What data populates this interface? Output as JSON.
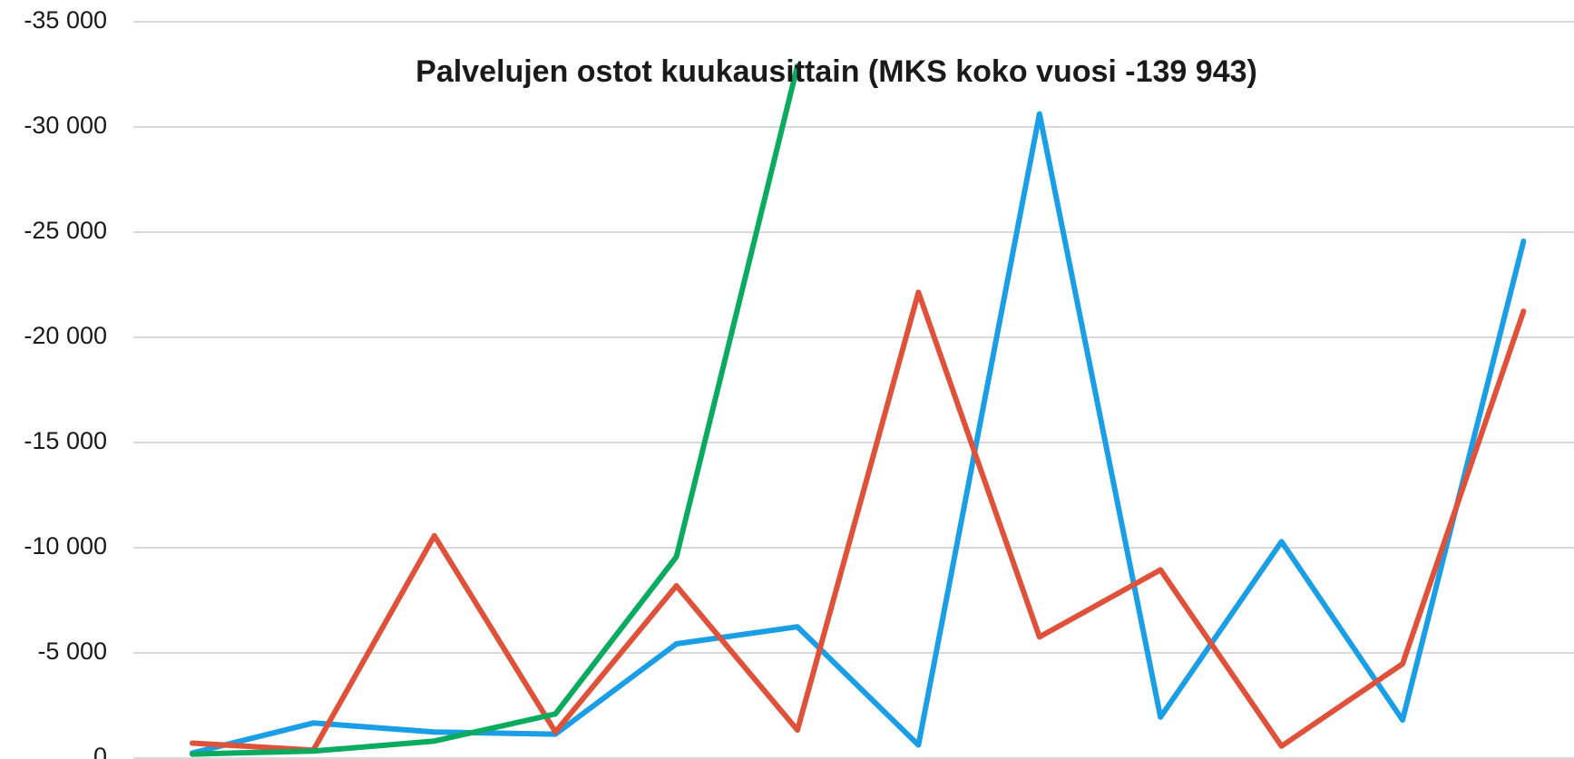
{
  "chart_data": {
    "type": "line",
    "title": "Palvelujen ostot kuukausittain (MKS koko vuosi -139 943)",
    "categories": [
      null,
      null,
      null,
      null,
      null,
      null,
      null,
      null,
      null,
      null,
      null,
      null
    ],
    "series": [
      {
        "name": null,
        "color": "#1a9ee6",
        "values": [
          -240,
          -1670,
          -1240,
          -1140,
          -5430,
          -6240,
          -620,
          -30620,
          -1950,
          -10290,
          -1810,
          -24570
        ]
      },
      {
        "name": null,
        "color": "#e0513a",
        "values": [
          -710,
          -380,
          -10570,
          -1240,
          -8190,
          -1330,
          -22140,
          -5760,
          -8950,
          -570,
          -4480,
          -21240
        ]
      },
      {
        "name": null,
        "color": "#0aab5e",
        "values": [
          -190,
          -330,
          -810,
          -2100,
          -9570,
          -32900,
          null,
          null,
          null,
          null,
          null,
          null
        ]
      }
    ],
    "ylim": [
      0,
      -35000
    ],
    "yticks": [
      0,
      {
        "value": -5000,
        "label": "-5 000"
      },
      {
        "value": -10000,
        "label": "-10 000"
      },
      {
        "value": -15000,
        "label": "-15 000"
      },
      {
        "value": -20000,
        "label": "-20 000"
      },
      {
        "value": -25000,
        "label": "-25 000"
      },
      {
        "value": -30000,
        "label": "-30 000"
      },
      {
        "value": -35000,
        "label": "-35 000"
      }
    ],
    "grid": true
  }
}
